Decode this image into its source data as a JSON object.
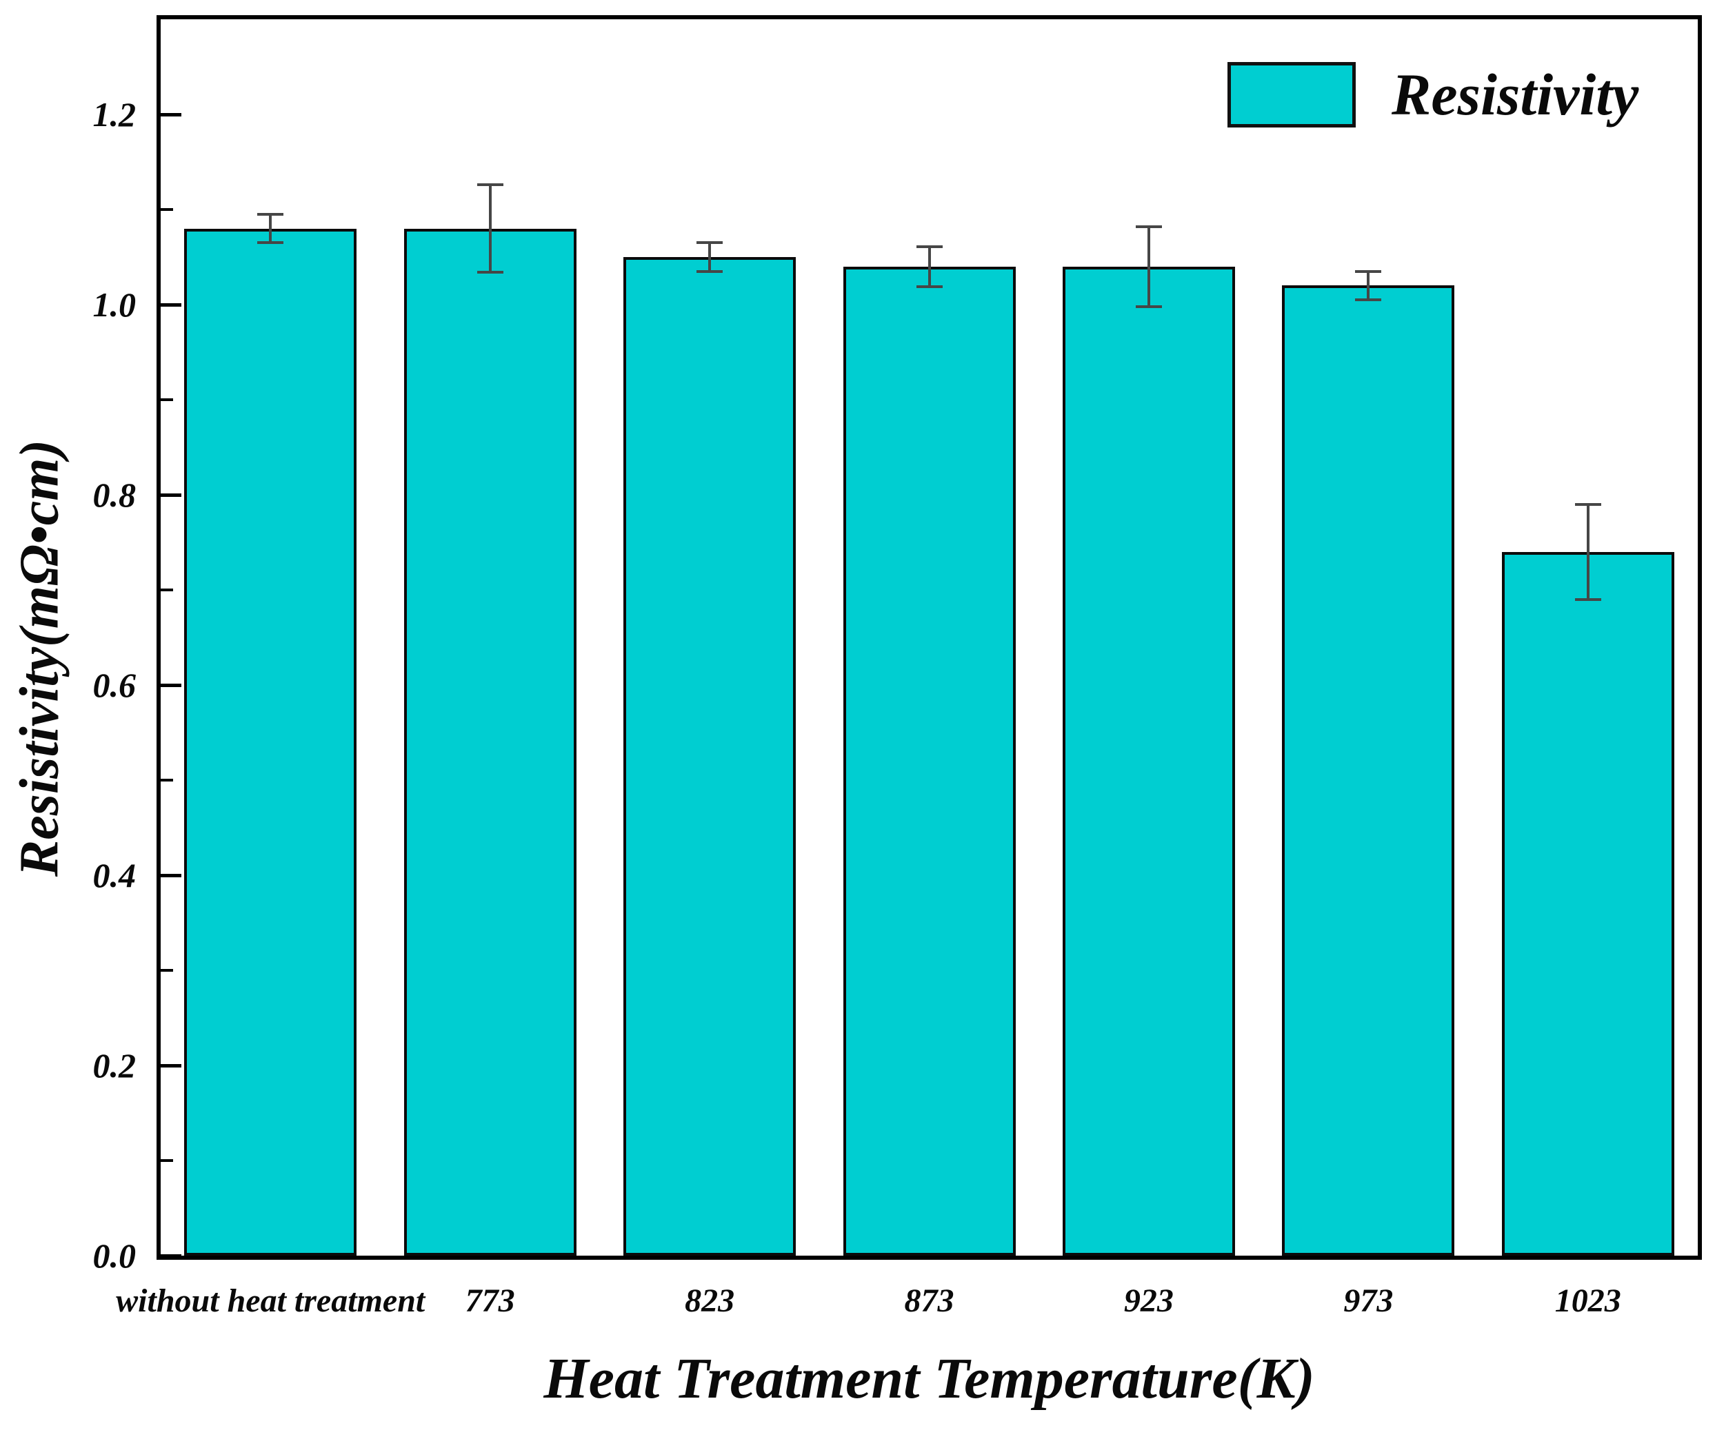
{
  "chart_data": {
    "type": "bar",
    "title": "",
    "categories": [
      "without heat treatment",
      "773",
      "823",
      "873",
      "923",
      "973",
      "1023"
    ],
    "series": [
      {
        "name": "Resistivity",
        "values": [
          1.08,
          1.08,
          1.05,
          1.04,
          1.04,
          1.02,
          0.74
        ],
        "errors": [
          0.015,
          0.046,
          0.015,
          0.021,
          0.042,
          0.015,
          0.05
        ]
      }
    ],
    "xlabel": "Heat Treatment Temperature(K)",
    "ylabel": "Resistivity(mΩ•cm)",
    "ylim": [
      0,
      1.3
    ],
    "y_major_ticks": [
      0.0,
      0.2,
      0.4,
      0.6,
      0.8,
      1.0,
      1.2
    ],
    "y_major_tick_labels": [
      "0.0",
      "0.2",
      "0.4",
      "0.6",
      "0.8",
      "1.0",
      "1.2"
    ],
    "y_minor_ticks": [
      0.1,
      0.3,
      0.5,
      0.7,
      0.9,
      1.1
    ],
    "grid": false,
    "legend": {
      "label": "Resistivity",
      "position": "top-right"
    },
    "colors": {
      "bar_fill": "#00CED1",
      "bar_border": "#0b0b0b",
      "axis_frame": "#000000",
      "error_bar": "#464646",
      "text": "#0a0a0a",
      "background": "#ffffff"
    }
  }
}
